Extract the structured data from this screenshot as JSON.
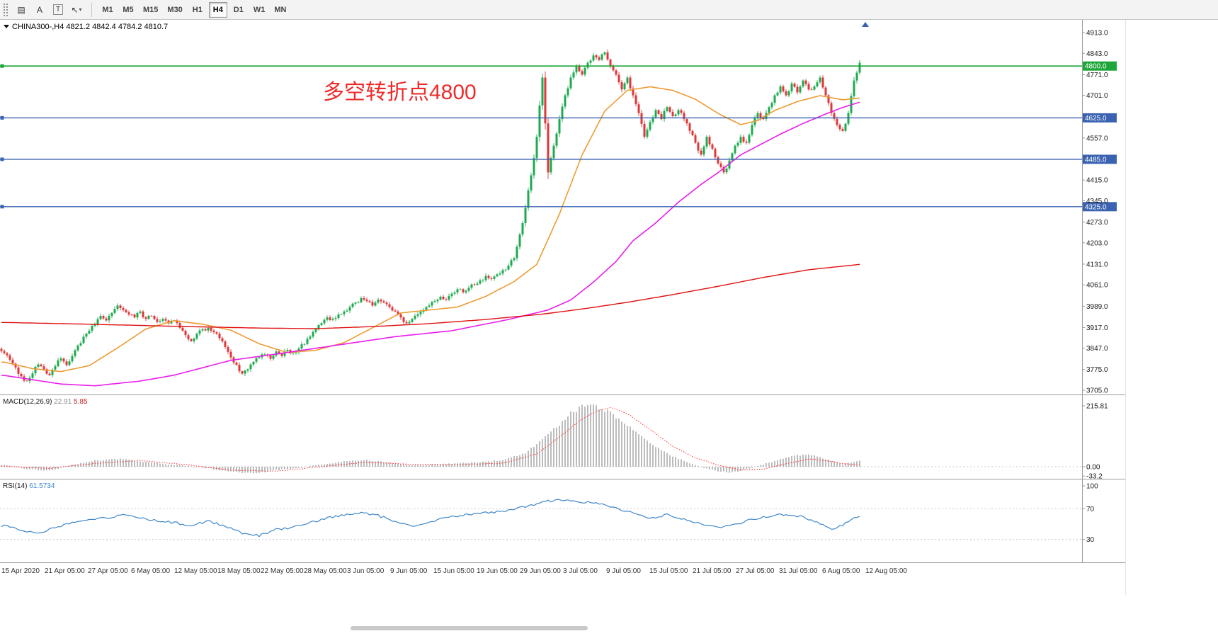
{
  "toolbar": {
    "icons": [
      {
        "name": "chart-windows-icon",
        "glyph": "▤"
      },
      {
        "name": "text-label-icon",
        "glyph": "A"
      },
      {
        "name": "text-box-icon",
        "glyph": "T"
      },
      {
        "name": "cursor-icon",
        "glyph": "↖"
      },
      {
        "name": "chevron-down-icon",
        "glyph": "▾"
      }
    ],
    "timeframes": [
      "M1",
      "M5",
      "M15",
      "M30",
      "H1",
      "H4",
      "D1",
      "W1",
      "MN"
    ],
    "active_timeframe": "H4"
  },
  "chart_data": {
    "type": "candlestick",
    "symbol": "CHINA300-",
    "period": "H4",
    "readout": {
      "symbol_period": "CHINA300-,H4",
      "open": "4821.2",
      "high": "4842.4",
      "low": "4784.2",
      "close": "4810.7"
    },
    "annotation": {
      "text": "多空转折点4800",
      "color": "#ee2a2a"
    },
    "grid": false,
    "legend_position": "none",
    "price_axis": {
      "min": 3705,
      "max": 4913,
      "ticks": [
        "4913.0",
        "4843.0",
        "4771.0",
        "4701.0",
        "4557.0",
        "4415.0",
        "4345.0",
        "4273.0",
        "4203.0",
        "4131.0",
        "4061.0",
        "3989.0",
        "3917.0",
        "3847.0",
        "3775.0",
        "3705.0"
      ]
    },
    "hlines": [
      {
        "price": 4800,
        "label": "4800.0",
        "color": "#1fa639",
        "width": 1.8
      },
      {
        "price": 4625,
        "label": "4625.0",
        "color": "#3a62b0",
        "width": 1.4
      },
      {
        "price": 4485,
        "label": "4485.0",
        "color": "#3a62b0",
        "width": 1.4
      },
      {
        "price": 4325,
        "label": "4325.0",
        "color": "#3a62b0",
        "width": 1.4
      }
    ],
    "time_labels": [
      "15 Apr 2020",
      "21 Apr 05:00",
      "27 Apr 05:00",
      "6 May 05:00",
      "12 May 05:00",
      "18 May 05:00",
      "22 May 05:00",
      "28 May 05:00",
      "3 Jun 05:00",
      "9 Jun 05:00",
      "15 Jun 05:00",
      "19 Jun 05:00",
      "29 Jun 05:00",
      "3 Jul 05:00",
      "9 Jul 05:00",
      "15 Jul 05:00",
      "21 Jul 05:00",
      "27 Jul 05:00",
      "31 Jul 05:00",
      "6 Aug 05:00",
      "12 Aug 05:00"
    ],
    "candles": {
      "up_color": "#1eaa4e",
      "down_color": "#df3638",
      "first_open": 3845,
      "closes": [
        3830,
        3808,
        3782,
        3752,
        3736,
        3762,
        3792,
        3776,
        3756,
        3786,
        3812,
        3790,
        3820,
        3856,
        3886,
        3906,
        3926,
        3956,
        3941,
        3966,
        3991,
        3976,
        3961,
        3951,
        3971,
        3946,
        3956,
        3936,
        3946,
        3931,
        3941,
        3916,
        3891,
        3871,
        3896,
        3911,
        3916,
        3901,
        3881,
        3851,
        3816,
        3791,
        3761,
        3776,
        3801,
        3816,
        3826,
        3811,
        3836,
        3821,
        3841,
        3831,
        3846,
        3861,
        3886,
        3911,
        3931,
        3951,
        3946,
        3961,
        3971,
        3986,
        4001,
        4016,
        4006,
        3991,
        4011,
        4001,
        3986,
        3971,
        3951,
        3931,
        3946,
        3961,
        3976,
        3991,
        4006,
        4021,
        4011,
        4031,
        4046,
        4036,
        4051,
        4061,
        4076,
        4091,
        4081,
        4096,
        4111,
        4126,
        4151,
        4231,
        4321,
        4431,
        4561,
        4761,
        4441,
        4531,
        4621,
        4701,
        4761,
        4801,
        4771,
        4811,
        4836,
        4821,
        4846,
        4801,
        4771,
        4721,
        4761,
        4701,
        4641,
        4561,
        4611,
        4651,
        4621,
        4661,
        4631,
        4651,
        4621,
        4581,
        4541,
        4501,
        4561,
        4521,
        4471,
        4441,
        4481,
        4531,
        4561,
        4541,
        4601,
        4641,
        4621,
        4661,
        4701,
        4731,
        4701,
        4741,
        4711,
        4751,
        4721,
        4731,
        4761,
        4701,
        4641,
        4601,
        4581,
        4641,
        4751,
        4811
      ]
    },
    "moving_averages": [
      {
        "name": "ma-fast",
        "color": "#ed9b33",
        "width": 1.6,
        "anchors": [
          [
            0,
            3800
          ],
          [
            5,
            3778
          ],
          [
            10,
            3768
          ],
          [
            15,
            3788
          ],
          [
            20,
            3848
          ],
          [
            25,
            3912
          ],
          [
            30,
            3940
          ],
          [
            35,
            3928
          ],
          [
            40,
            3908
          ],
          [
            45,
            3862
          ],
          [
            50,
            3832
          ],
          [
            55,
            3840
          ],
          [
            60,
            3866
          ],
          [
            65,
            3916
          ],
          [
            70,
            3966
          ],
          [
            75,
            3976
          ],
          [
            80,
            3986
          ],
          [
            85,
            4022
          ],
          [
            90,
            4072
          ],
          [
            94,
            4130
          ],
          [
            98,
            4300
          ],
          [
            102,
            4500
          ],
          [
            106,
            4648
          ],
          [
            110,
            4718
          ],
          [
            114,
            4730
          ],
          [
            118,
            4718
          ],
          [
            122,
            4688
          ],
          [
            126,
            4640
          ],
          [
            130,
            4602
          ],
          [
            133,
            4616
          ],
          [
            136,
            4650
          ],
          [
            140,
            4680
          ],
          [
            144,
            4700
          ],
          [
            148,
            4686
          ],
          [
            151,
            4692
          ]
        ]
      },
      {
        "name": "ma-mid",
        "color": "#ea1eea",
        "width": 1.6,
        "anchors": [
          [
            0,
            3755
          ],
          [
            10,
            3726
          ],
          [
            16,
            3720
          ],
          [
            24,
            3736
          ],
          [
            30,
            3756
          ],
          [
            40,
            3806
          ],
          [
            49,
            3830
          ],
          [
            59,
            3858
          ],
          [
            69,
            3886
          ],
          [
            79,
            3906
          ],
          [
            89,
            3944
          ],
          [
            96,
            3976
          ],
          [
            100,
            4010
          ],
          [
            104,
            4070
          ],
          [
            108,
            4140
          ],
          [
            111,
            4210
          ],
          [
            115,
            4270
          ],
          [
            119,
            4340
          ],
          [
            123,
            4400
          ],
          [
            126,
            4440
          ],
          [
            130,
            4500
          ],
          [
            133,
            4530
          ],
          [
            137,
            4570
          ],
          [
            141,
            4606
          ],
          [
            145,
            4638
          ],
          [
            148,
            4660
          ],
          [
            151,
            4678
          ]
        ]
      },
      {
        "name": "ma-slow",
        "color": "#e01010",
        "width": 1.4,
        "anchors": [
          [
            0,
            3934
          ],
          [
            15,
            3928
          ],
          [
            30,
            3921
          ],
          [
            45,
            3915
          ],
          [
            55,
            3913
          ],
          [
            65,
            3920
          ],
          [
            75,
            3930
          ],
          [
            85,
            3944
          ],
          [
            95,
            3962
          ],
          [
            103,
            3982
          ],
          [
            110,
            4002
          ],
          [
            118,
            4028
          ],
          [
            126,
            4056
          ],
          [
            134,
            4086
          ],
          [
            142,
            4112
          ],
          [
            151,
            4130
          ]
        ]
      }
    ],
    "macd": {
      "label": "MACD(12,26,9)",
      "main_value": "22.91",
      "signal_value": "5.85",
      "axis_max": 215.81,
      "axis_ticks": [
        {
          "label": "215.81",
          "value": 215.81
        },
        {
          "label": "0.00",
          "value": 0
        },
        {
          "label": "-33.2",
          "value": -33.2
        }
      ],
      "hist_color": "#ababab",
      "signal_color": "#ff3333",
      "hist_anchors": [
        [
          0,
          5
        ],
        [
          4,
          -8
        ],
        [
          8,
          -14
        ],
        [
          12,
          6
        ],
        [
          16,
          22
        ],
        [
          20,
          28
        ],
        [
          24,
          20
        ],
        [
          28,
          10
        ],
        [
          32,
          4
        ],
        [
          36,
          -6
        ],
        [
          40,
          -18
        ],
        [
          44,
          -24
        ],
        [
          48,
          -12
        ],
        [
          52,
          -4
        ],
        [
          56,
          8
        ],
        [
          60,
          18
        ],
        [
          64,
          24
        ],
        [
          68,
          14
        ],
        [
          72,
          4
        ],
        [
          76,
          8
        ],
        [
          80,
          12
        ],
        [
          84,
          16
        ],
        [
          88,
          24
        ],
        [
          92,
          50
        ],
        [
          95,
          95
        ],
        [
          98,
          150
        ],
        [
          100,
          190
        ],
        [
          102,
          212
        ],
        [
          104,
          216
        ],
        [
          106,
          202
        ],
        [
          108,
          178
        ],
        [
          110,
          148
        ],
        [
          112,
          112
        ],
        [
          114,
          82
        ],
        [
          116,
          58
        ],
        [
          118,
          38
        ],
        [
          120,
          20
        ],
        [
          122,
          6
        ],
        [
          124,
          -6
        ],
        [
          126,
          -16
        ],
        [
          128,
          -22
        ],
        [
          130,
          -14
        ],
        [
          132,
          -4
        ],
        [
          134,
          8
        ],
        [
          136,
          20
        ],
        [
          138,
          32
        ],
        [
          140,
          40
        ],
        [
          142,
          42
        ],
        [
          144,
          34
        ],
        [
          146,
          20
        ],
        [
          148,
          10
        ],
        [
          150,
          16
        ],
        [
          151,
          23
        ]
      ],
      "signal_anchors": [
        [
          0,
          2
        ],
        [
          8,
          -6
        ],
        [
          16,
          12
        ],
        [
          24,
          22
        ],
        [
          32,
          8
        ],
        [
          40,
          -12
        ],
        [
          48,
          -16
        ],
        [
          56,
          0
        ],
        [
          64,
          16
        ],
        [
          72,
          8
        ],
        [
          80,
          8
        ],
        [
          88,
          12
        ],
        [
          94,
          45
        ],
        [
          98,
          105
        ],
        [
          102,
          170
        ],
        [
          105,
          200
        ],
        [
          107,
          210
        ],
        [
          110,
          188
        ],
        [
          114,
          132
        ],
        [
          118,
          72
        ],
        [
          122,
          32
        ],
        [
          126,
          6
        ],
        [
          130,
          -12
        ],
        [
          134,
          -8
        ],
        [
          138,
          10
        ],
        [
          142,
          28
        ],
        [
          146,
          18
        ],
        [
          149,
          9
        ],
        [
          151,
          6
        ]
      ]
    },
    "rsi": {
      "label": "RSI(14)",
      "value": "61.5734",
      "line_color": "#3f87c9",
      "axis_ticks": [
        {
          "label": "100",
          "value": 100
        },
        {
          "label": "70",
          "value": 70
        },
        {
          "label": "30",
          "value": 30
        }
      ],
      "levels": [
        70,
        30
      ],
      "anchors": [
        [
          0,
          48
        ],
        [
          3,
          42
        ],
        [
          6,
          38
        ],
        [
          9,
          46
        ],
        [
          12,
          52
        ],
        [
          15,
          56
        ],
        [
          18,
          58
        ],
        [
          21,
          62
        ],
        [
          24,
          58
        ],
        [
          27,
          54
        ],
        [
          30,
          52
        ],
        [
          33,
          48
        ],
        [
          36,
          54
        ],
        [
          39,
          47
        ],
        [
          42,
          38
        ],
        [
          45,
          35
        ],
        [
          48,
          43
        ],
        [
          51,
          46
        ],
        [
          54,
          52
        ],
        [
          57,
          58
        ],
        [
          60,
          62
        ],
        [
          63,
          65
        ],
        [
          66,
          61
        ],
        [
          69,
          54
        ],
        [
          72,
          47
        ],
        [
          75,
          52
        ],
        [
          78,
          58
        ],
        [
          81,
          62
        ],
        [
          84,
          64
        ],
        [
          87,
          66
        ],
        [
          90,
          69
        ],
        [
          93,
          75
        ],
        [
          96,
          80
        ],
        [
          99,
          82
        ],
        [
          102,
          79
        ],
        [
          105,
          77
        ],
        [
          108,
          71
        ],
        [
          111,
          64
        ],
        [
          114,
          57
        ],
        [
          117,
          62
        ],
        [
          120,
          57
        ],
        [
          123,
          50
        ],
        [
          126,
          45
        ],
        [
          129,
          49
        ],
        [
          132,
          56
        ],
        [
          135,
          60
        ],
        [
          138,
          63
        ],
        [
          141,
          59
        ],
        [
          144,
          51
        ],
        [
          146,
          42
        ],
        [
          148,
          49
        ],
        [
          151,
          61.6
        ]
      ]
    },
    "scroll_marker_color": "#3a62b0"
  }
}
